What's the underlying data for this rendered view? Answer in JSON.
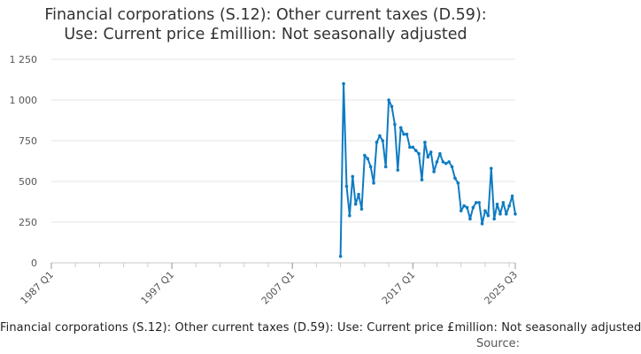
{
  "chart_data": {
    "type": "line",
    "title_line1": "Financial corporations (S.12): Other current taxes (D.59):",
    "title_line2": "Use: Current price £million: Not seasonally adjusted",
    "caption": "Financial corporations (S.12): Other current taxes (D.59): Use: Current price £million: Not seasonally adjusted",
    "source_label": "Source:",
    "xlabel": "",
    "ylabel": "",
    "ylim": [
      0,
      1250
    ],
    "xlim": [
      1987.0,
      2025.5
    ],
    "grid": true,
    "color": "#0f7bc2",
    "y_ticks": [
      {
        "value": 0,
        "label": "0"
      },
      {
        "value": 250,
        "label": "250"
      },
      {
        "value": 500,
        "label": "500"
      },
      {
        "value": 750,
        "label": "750"
      },
      {
        "value": 1000,
        "label": "1 000"
      },
      {
        "value": 1250,
        "label": "1 250"
      }
    ],
    "x_ticks": [
      {
        "value": 1987.0,
        "label": "1987 Q1"
      },
      {
        "value": 1997.0,
        "label": "1997 Q1"
      },
      {
        "value": 2007.0,
        "label": "2007 Q1"
      },
      {
        "value": 2017.0,
        "label": "2017 Q1"
      },
      {
        "value": 2025.5,
        "label": "2025 Q3"
      }
    ],
    "minor_tick_step": 2,
    "series": [
      {
        "name": "Other current taxes (D.59)",
        "x": [
          2011.0,
          2011.25,
          2011.5,
          2011.75,
          2012.0,
          2012.25,
          2012.5,
          2012.75,
          2013.0,
          2013.25,
          2013.5,
          2013.75,
          2014.0,
          2014.25,
          2014.5,
          2014.75,
          2015.0,
          2015.25,
          2015.5,
          2015.75,
          2016.0,
          2016.25,
          2016.5,
          2016.75,
          2017.0,
          2017.25,
          2017.5,
          2017.75,
          2018.0,
          2018.25,
          2018.5,
          2018.75,
          2019.0,
          2019.25,
          2019.5,
          2019.75,
          2020.0,
          2020.25,
          2020.5,
          2020.75,
          2021.0,
          2021.25,
          2021.5,
          2021.75,
          2022.0,
          2022.25,
          2022.5,
          2022.75,
          2023.0,
          2023.25,
          2023.5,
          2023.75,
          2024.0,
          2024.25,
          2024.5,
          2024.75,
          2025.0,
          2025.25,
          2025.5
        ],
        "values": [
          40,
          1100,
          470,
          290,
          530,
          360,
          420,
          330,
          660,
          640,
          590,
          490,
          740,
          780,
          750,
          590,
          1000,
          960,
          850,
          570,
          830,
          790,
          790,
          710,
          710,
          690,
          670,
          510,
          740,
          650,
          680,
          560,
          620,
          670,
          620,
          610,
          620,
          590,
          520,
          490,
          320,
          350,
          340,
          270,
          340,
          370,
          370,
          240,
          320,
          290,
          580,
          270,
          360,
          300,
          370,
          300,
          350,
          410,
          300
        ]
      }
    ]
  }
}
